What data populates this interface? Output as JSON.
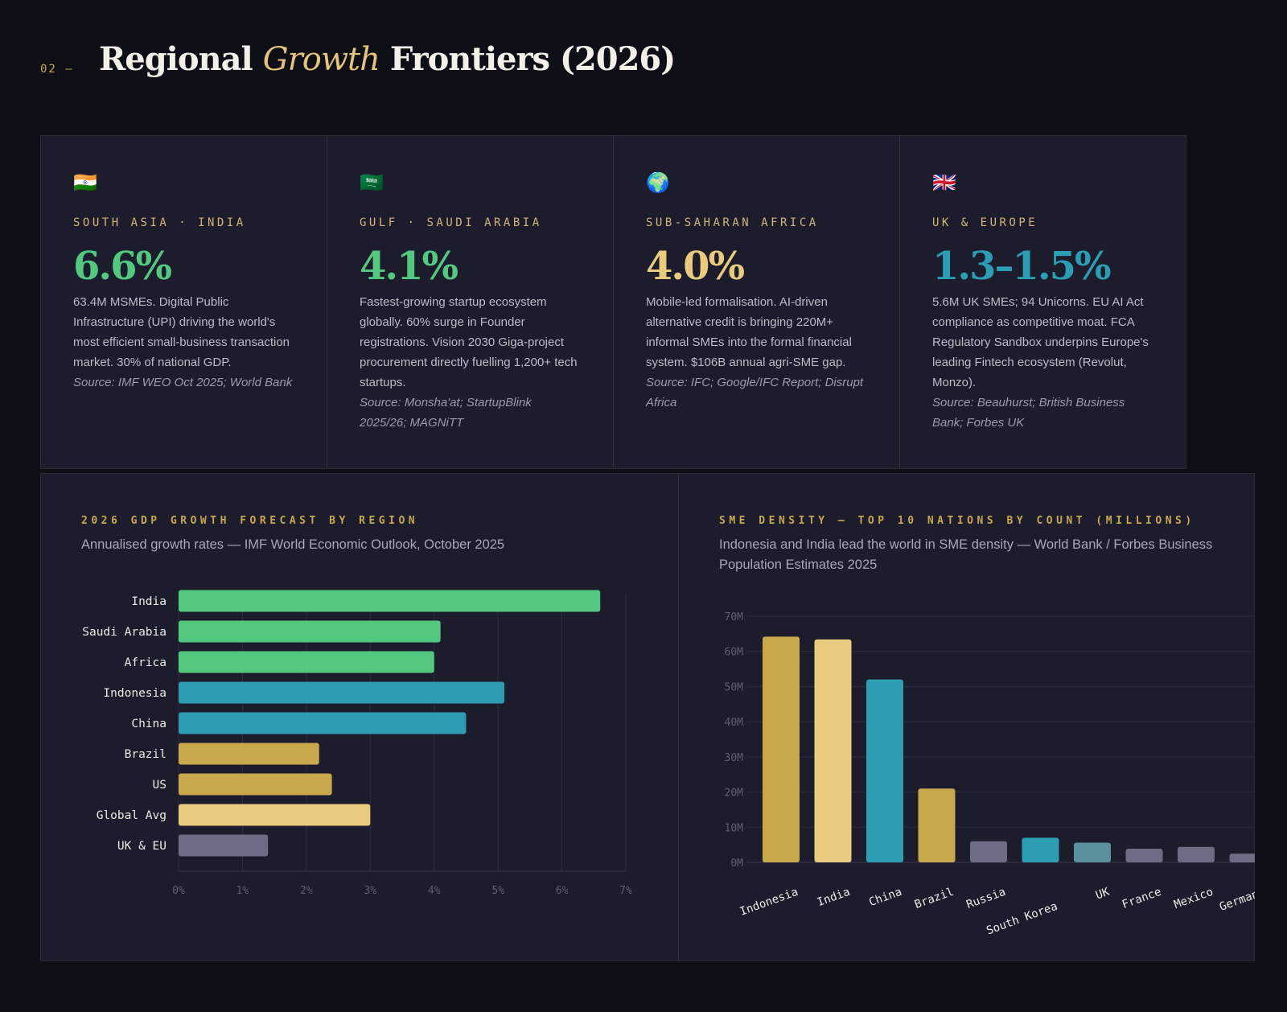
{
  "header": {
    "section_number": "02 —",
    "title_before": "Regional ",
    "title_em": "Growth",
    "title_after": " Frontiers (2026)"
  },
  "cards": [
    {
      "flag": "🇮🇳",
      "region": "SOUTH ASIA · INDIA",
      "value": "6.6%",
      "color": "#52c97e",
      "desc": "63.4M MSMEs. Digital Public Infrastructure (UPI) driving the world's most efficient small-business transaction market. 30% of national GDP.",
      "source": "Source: IMF WEO Oct 2025; World Bank"
    },
    {
      "flag": "🇸🇦",
      "region": "GULF · SAUDI ARABIA",
      "value": "4.1%",
      "color": "#52c97e",
      "desc": "Fastest-growing startup ecosystem globally. 60% surge in Founder registrations. Vision 2030 Giga-project procurement directly fuelling 1,200+ tech startups.",
      "source": "Source: Monsha'at; StartupBlink 2025/26; MAGNiTT"
    },
    {
      "flag": "🌍",
      "region": "SUB-SAHARAN AFRICA",
      "value": "4.0%",
      "color": "#e8cb7c",
      "desc": "Mobile-led formalisation. AI-driven alternative credit is bringing 220M+ informal SMEs into the formal financial system. $106B annual agri-SME gap.",
      "source": "Source: IFC; Google/IFC Report; Disrupt Africa"
    },
    {
      "flag": "🇬🇧",
      "region": "UK & EUROPE",
      "value": "1.3–1.5%",
      "color": "#2b9eb3",
      "desc": "5.6M UK SMEs; 94 Unicorns. EU AI Act compliance as competitive moat. FCA Regulatory Sandbox underpins Europe's leading Fintech ecosystem (Revolut, Monzo).",
      "source": "Source: Beauhurst; British Business Bank; Forbes UK"
    }
  ],
  "chart_data": [
    {
      "type": "bar",
      "orientation": "horizontal",
      "title": "2026 GDP GROWTH FORECAST BY REGION",
      "subtitle": "Annualised growth rates — IMF World Economic Outlook, October 2025",
      "categories": [
        "India",
        "Saudi Arabia",
        "Africa",
        "Indonesia",
        "China",
        "Brazil",
        "US",
        "Global Avg",
        "UK & EU"
      ],
      "values": [
        6.6,
        4.1,
        4.0,
        5.1,
        4.5,
        2.2,
        2.4,
        3.0,
        1.4
      ],
      "colors": [
        "#52c97e",
        "#52c97e",
        "#52c97e",
        "#2b9eb3",
        "#2b9eb3",
        "#c9a84c",
        "#c9a84c",
        "#e8cb7c",
        "#6e6c85"
      ],
      "xlim": [
        0,
        7
      ],
      "xticks": [
        "0%",
        "1%",
        "2%",
        "3%",
        "4%",
        "5%",
        "6%",
        "7%"
      ],
      "unit": "%",
      "grid": true
    },
    {
      "type": "bar",
      "orientation": "vertical",
      "title": "SME DENSITY — TOP 10 NATIONS BY COUNT (MILLIONS)",
      "subtitle": "Indonesia and India lead the world in SME density — World Bank / Forbes Business Population Estimates 2025",
      "categories": [
        "Indonesia",
        "India",
        "China",
        "Brazil",
        "Russia",
        "South Korea",
        "UK",
        "France",
        "Mexico",
        "Germany"
      ],
      "values": [
        64.2,
        63.4,
        52,
        21,
        6,
        7,
        5.6,
        3.9,
        4.4,
        2.5
      ],
      "colors": [
        "#c9a84c",
        "#e8cb7c",
        "#2b9eb3",
        "#c9a84c",
        "#6e6c85",
        "#2b9eb3",
        "#5a8f9c",
        "#6e6c85",
        "#6e6c85",
        "#6e6c85"
      ],
      "ylim": [
        0,
        70
      ],
      "yticks": [
        "0M",
        "10M",
        "20M",
        "30M",
        "40M",
        "50M",
        "60M",
        "70M"
      ],
      "unit": "M",
      "grid": true
    }
  ]
}
